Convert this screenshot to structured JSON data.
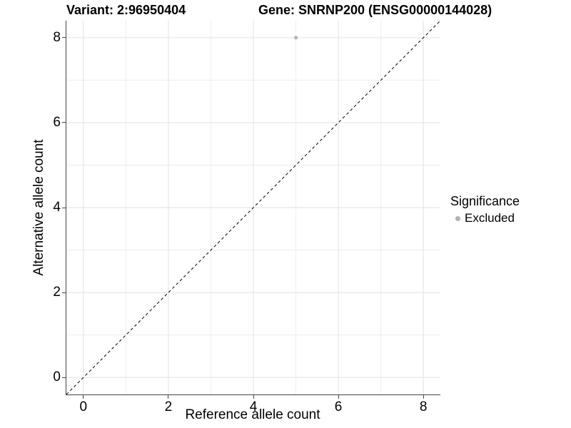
{
  "header": {
    "title_variant": "Variant: 2:96950404",
    "title_gene": "Gene: SNRNP200 (ENSG00000144028)"
  },
  "axes": {
    "x_title": "Reference allele count",
    "y_title": "Alternative allele count"
  },
  "legend": {
    "title": "Significance",
    "items": [
      {
        "label": "Excluded",
        "color": "#b3b3b3"
      }
    ]
  },
  "colors": {
    "background": "#ffffff",
    "grid_major": "#e2e2e2",
    "grid_minor": "#ededed",
    "axis_line": "#444444",
    "tick_mark": "#444444",
    "text": "#000000",
    "point": "#b3b3b3",
    "identity_line": "#000000"
  },
  "chart_data": {
    "type": "scatter",
    "title": "Variant: 2:96950404 | Gene: SNRNP200 (ENSG00000144028)",
    "xlabel": "Reference allele count",
    "ylabel": "Alternative allele count",
    "xlim": [
      -0.4,
      8.4
    ],
    "ylim": [
      -0.4,
      8.4
    ],
    "x_major_ticks": [
      0,
      2,
      4,
      6,
      8
    ],
    "y_major_ticks": [
      0,
      2,
      4,
      6,
      8
    ],
    "x_minor_gridlines": [
      1,
      3,
      5,
      7
    ],
    "y_minor_gridlines": [
      1,
      3,
      5,
      7
    ],
    "grid": true,
    "legend_position": "right",
    "series": [
      {
        "name": "Excluded",
        "color": "#b3b3b3",
        "point_radius": 2.5,
        "points": [
          {
            "x": 5,
            "y": 8
          }
        ]
      }
    ],
    "reference_line": {
      "type": "identity",
      "slope": 1,
      "intercept": 0,
      "style": "dashed",
      "color": "#000000"
    }
  }
}
